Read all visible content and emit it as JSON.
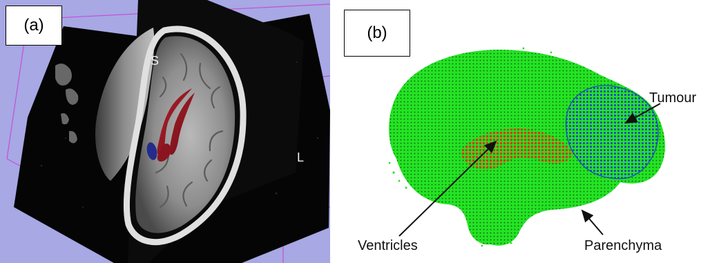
{
  "panel_a": {
    "label": "(a)",
    "orientation_superior": "S",
    "orientation_left": "L",
    "colors": {
      "background": "#a7a8e4",
      "slice": "#050505",
      "bounding_box": "#c44fd6",
      "ventricles": "#8f1a22",
      "tumour": "#232c8a"
    }
  },
  "panel_b": {
    "label": "(b)",
    "annotations": {
      "tumour": "Tumour",
      "ventricles": "Ventricles",
      "parenchyma": "Parenchyma"
    },
    "colors": {
      "parenchyma": "#22e022",
      "ventricles": "#d43a10",
      "tumour": "#1f3fc8",
      "arrow": "#111111"
    }
  }
}
